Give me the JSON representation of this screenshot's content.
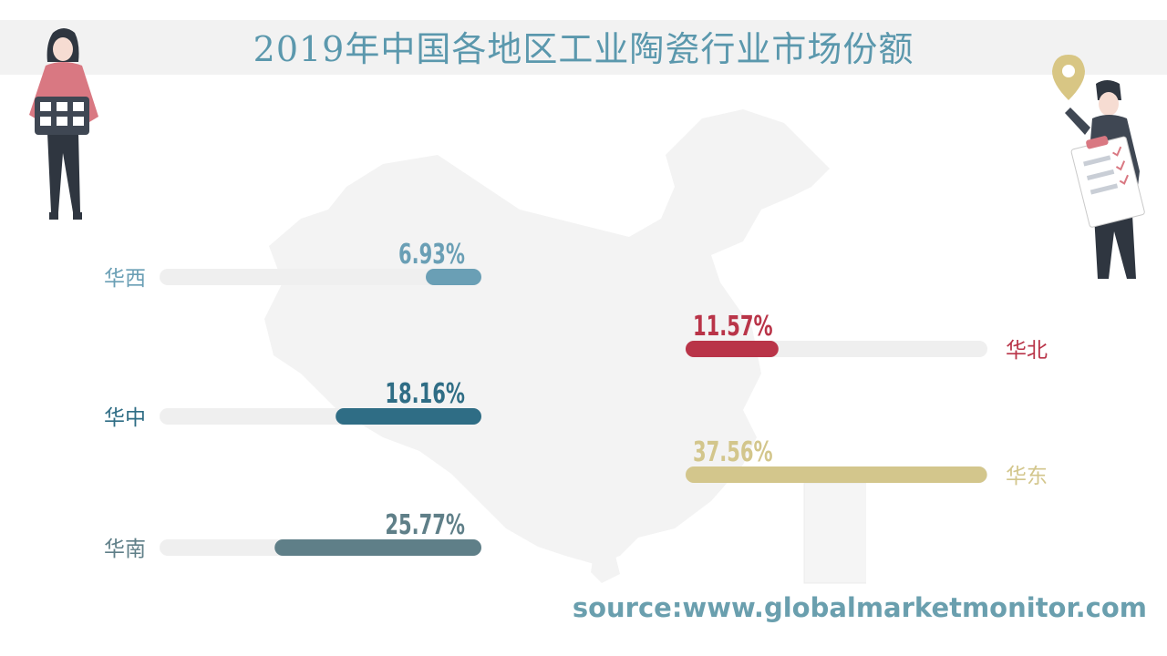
{
  "chart_data": {
    "type": "bar",
    "title": "2019年中国各地区工业陶瓷行业市场份额",
    "unit": "%",
    "xlim": [
      0,
      50
    ],
    "series": [
      {
        "categories": [
          "华西",
          "华中",
          "华南"
        ],
        "values": [
          6.93,
          18.16,
          25.77
        ],
        "labels": [
          "6.93%",
          "18.16%",
          "25.77%"
        ],
        "colors": [
          "#6a9fb5",
          "#2f6d85",
          "#5f7f88"
        ]
      },
      {
        "categories": [
          "华北",
          "华东"
        ],
        "values": [
          11.57,
          37.56
        ],
        "labels": [
          "11.57%",
          "37.56%"
        ],
        "colors": [
          "#b93448",
          "#d3c68c"
        ]
      }
    ],
    "source": "source:www.globalmarketmonitor.com"
  },
  "decor": {
    "map_color": "#f3f3f3",
    "track_color": "#efefef",
    "person_left": "woman-calendar-icon",
    "person_right": "man-checklist-icon"
  }
}
